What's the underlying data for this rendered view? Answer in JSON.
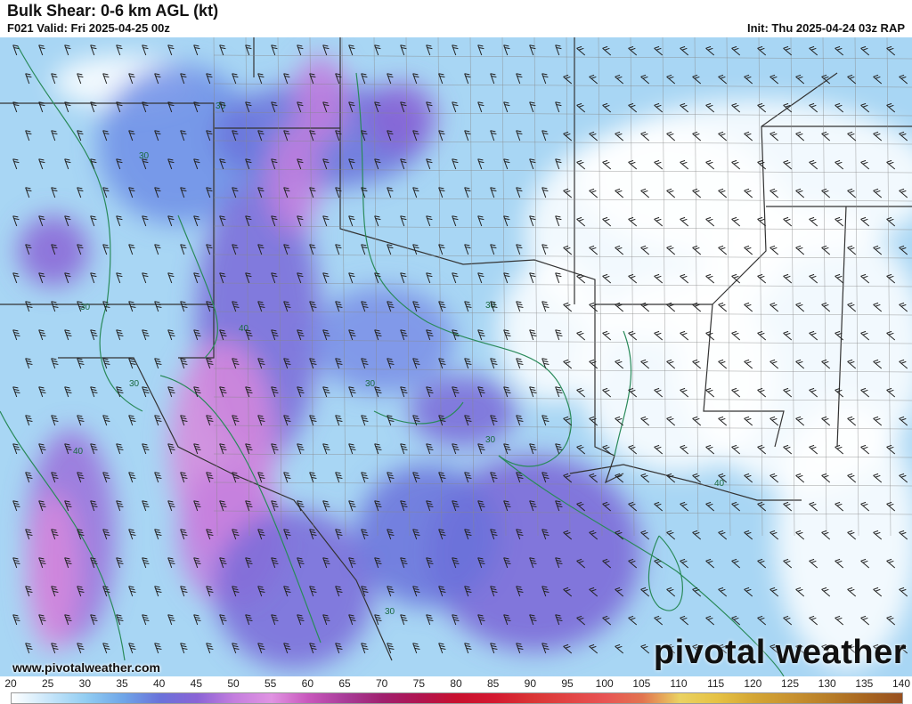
{
  "header": {
    "title": "Bulk Shear: 0-6 km AGL (kt)",
    "valid": "F021 Valid: Fri 2025-04-25 00z",
    "init": "Init: Thu 2025-04-24 03z RAP"
  },
  "map": {
    "field": "0-6 km bulk shear",
    "units": "kt",
    "contour_labels": [
      "30",
      "30",
      "30",
      "30",
      "30",
      "30",
      "30",
      "40",
      "40",
      "40",
      "30"
    ],
    "barb_color": "#222222",
    "contour_color": "#2a8a5a"
  },
  "footer": {
    "url": "www.pivotalweather.com",
    "logo": "pivotal weather"
  },
  "colorbar": {
    "labels": [
      "20",
      "25",
      "30",
      "35",
      "40",
      "45",
      "50",
      "55",
      "60",
      "65",
      "70",
      "75",
      "80",
      "85",
      "90",
      "95",
      "100",
      "105",
      "110",
      "115",
      "120",
      "125",
      "130",
      "135",
      "140"
    ],
    "colors": [
      "#ffffff",
      "#c8e6fa",
      "#92cdf2",
      "#6fa6e8",
      "#6a72da",
      "#8a64d6",
      "#c47ede",
      "#e094e2",
      "#c858bc",
      "#a83c98",
      "#a0206e",
      "#b01450",
      "#c8102e",
      "#d41830",
      "#da3434",
      "#e24444",
      "#e85454",
      "#e27450",
      "#ead262",
      "#e6c244",
      "#d4a634",
      "#c89230",
      "#b87e28",
      "#a86620",
      "#985020"
    ]
  }
}
